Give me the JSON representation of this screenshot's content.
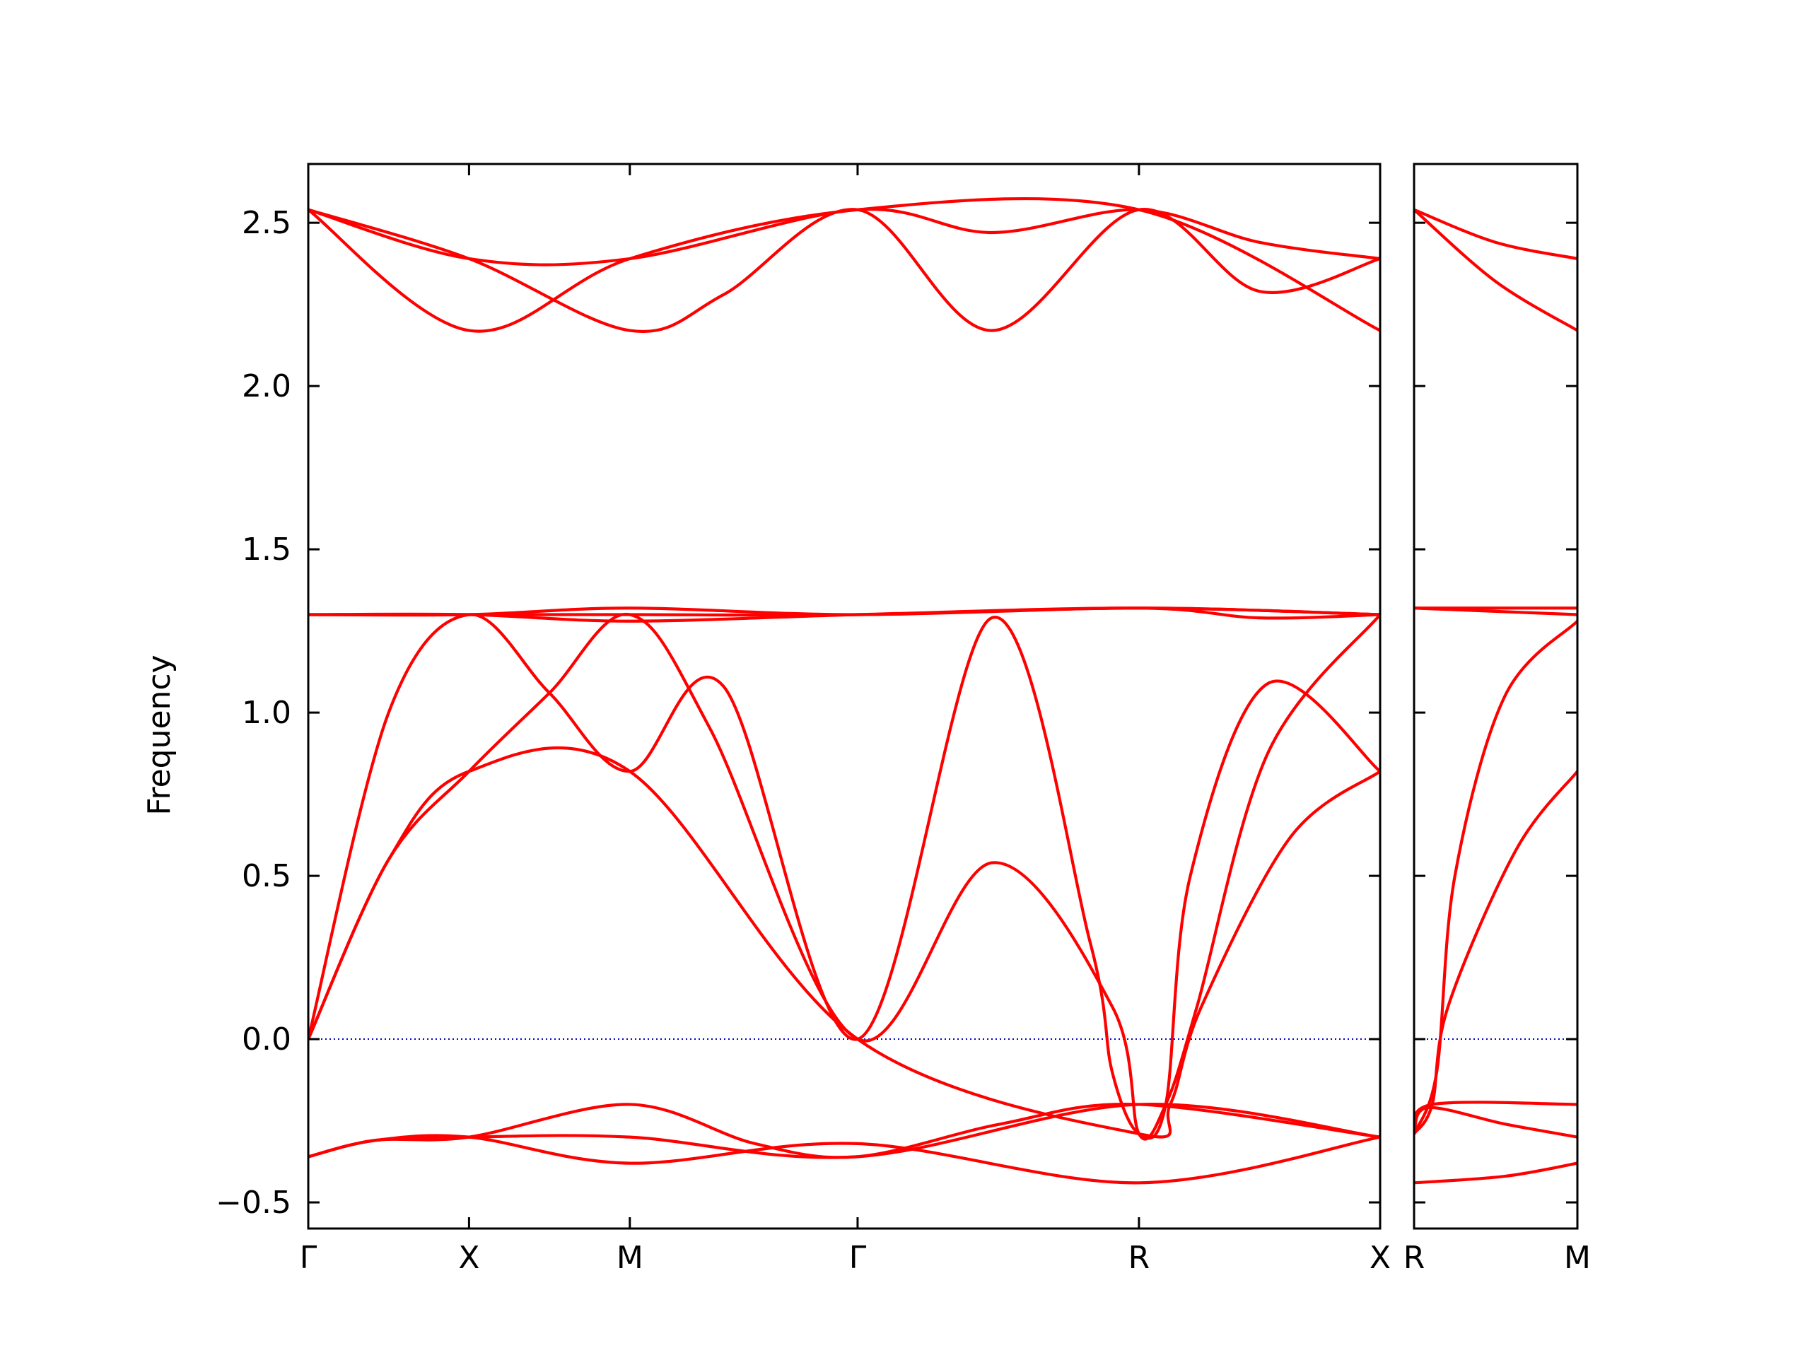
{
  "chart_data": {
    "type": "line",
    "title": "",
    "xlabel": "",
    "ylabel": "Frequency",
    "ylim": [
      -0.58,
      2.68
    ],
    "yticks": [
      "−0.5",
      "0.0",
      "0.5",
      "1.0",
      "1.5",
      "2.0",
      "2.5"
    ],
    "ytick_values": [
      -0.5,
      0.0,
      0.5,
      1.0,
      1.5,
      2.0,
      2.5
    ],
    "grid": false,
    "legend": "none",
    "line_color": "#ff0000",
    "zero_line_color": "#0000cc",
    "panels": [
      {
        "xlim": [
          0,
          4.8
        ],
        "xticks": [
          "Γ",
          "X",
          "M",
          "Γ",
          "R",
          "X"
        ],
        "xtick_positions": [
          0,
          0.72,
          1.44,
          2.46,
          3.72,
          4.8
        ],
        "series": [
          {
            "x": [
              0,
              0.72,
              1.44,
              2.46,
              3.06,
              3.72,
              4.26,
              4.8
            ],
            "y": [
              2.54,
              2.39,
              2.39,
              2.54,
              2.47,
              2.54,
              2.44,
              2.39
            ]
          },
          {
            "x": [
              0,
              0.72,
              1.44,
              1.86,
              2.46,
              3.06,
              3.72,
              4.26,
              4.8
            ],
            "y": [
              2.54,
              2.39,
              2.17,
              2.28,
              2.54,
              2.17,
              2.54,
              2.29,
              2.39
            ]
          },
          {
            "x": [
              0,
              0.72,
              1.44,
              2.46,
              3.72,
              4.8
            ],
            "y": [
              2.54,
              2.17,
              2.39,
              2.54,
              2.54,
              2.17
            ]
          },
          {
            "x": [
              0,
              0.72,
              1.44,
              2.46,
              3.72,
              4.8
            ],
            "y": [
              1.3,
              1.3,
              1.32,
              1.3,
              1.32,
              1.3
            ]
          },
          {
            "x": [
              0,
              0.72,
              1.44,
              2.46,
              3.72,
              4.26,
              4.8
            ],
            "y": [
              1.3,
              1.3,
              1.28,
              1.3,
              1.32,
              1.29,
              1.3
            ]
          },
          {
            "x": [
              0,
              0.72,
              1.44,
              2.46,
              3.72,
              4.8
            ],
            "y": [
              1.3,
              1.3,
              1.3,
              1.3,
              1.32,
              1.3
            ]
          },
          {
            "x": [
              0,
              0.36,
              0.72,
              1.08,
              1.44,
              1.86,
              2.46,
              3.06,
              3.5,
              3.6,
              3.72,
              3.84,
              3.95,
              4.3,
              4.8
            ],
            "y": [
              0.0,
              1.0,
              1.3,
              1.06,
              0.82,
              1.08,
              0.0,
              1.29,
              0.3,
              -0.1,
              -0.29,
              -0.2,
              0.5,
              1.09,
              0.82
            ]
          },
          {
            "x": [
              0,
              0.36,
              0.72,
              1.08,
              1.44,
              1.8,
              2.46,
              3.06,
              3.6,
              3.72,
              3.84,
              3.98,
              4.3,
              4.8
            ],
            "y": [
              0.0,
              0.55,
              0.82,
              1.06,
              1.3,
              0.95,
              0.0,
              0.54,
              0.1,
              -0.29,
              -0.2,
              0.1,
              0.88,
              1.3
            ]
          },
          {
            "x": [
              0,
              0.36,
              0.72,
              1.44,
              2.46,
              3.72,
              3.86,
              4.0,
              4.4,
              4.8
            ],
            "y": [
              0.0,
              0.55,
              0.82,
              0.82,
              0.0,
              -0.29,
              -0.2,
              0.1,
              0.62,
              0.82
            ]
          },
          {
            "x": [
              0,
              0.3,
              0.72,
              1.44,
              2.0,
              2.46,
              3.1,
              3.72,
              4.8
            ],
            "y": [
              -0.36,
              -0.31,
              -0.3,
              -0.2,
              -0.32,
              -0.36,
              -0.26,
              -0.2,
              -0.3
            ]
          },
          {
            "x": [
              0,
              0.3,
              0.72,
              1.44,
              2.46,
              3.72,
              4.8
            ],
            "y": [
              -0.36,
              -0.31,
              -0.3,
              -0.3,
              -0.36,
              -0.2,
              -0.3
            ]
          },
          {
            "x": [
              0,
              0.3,
              0.72,
              1.44,
              2.46,
              3.72,
              4.8
            ],
            "y": [
              -0.36,
              -0.31,
              -0.3,
              -0.38,
              -0.32,
              -0.44,
              -0.3
            ]
          }
        ]
      },
      {
        "xlim": [
          0,
          0.72
        ],
        "xticks": [
          "R",
          "M"
        ],
        "xtick_positions": [
          0,
          0.72
        ],
        "series": [
          {
            "x": [
              0,
              0.36,
              0.72
            ],
            "y": [
              2.54,
              2.44,
              2.39
            ]
          },
          {
            "x": [
              0,
              0.36,
              0.72
            ],
            "y": [
              2.54,
              2.32,
              2.17
            ]
          },
          {
            "x": [
              0,
              0.72
            ],
            "y": [
              1.32,
              1.32
            ]
          },
          {
            "x": [
              0,
              0.72
            ],
            "y": [
              1.32,
              1.3
            ]
          },
          {
            "x": [
              0,
              0.1,
              0.18,
              0.4,
              0.72
            ],
            "y": [
              -0.29,
              -0.1,
              0.5,
              1.05,
              1.28
            ]
          },
          {
            "x": [
              0,
              0.08,
              0.15,
              0.45,
              0.72
            ],
            "y": [
              -0.29,
              -0.2,
              0.1,
              0.58,
              0.82
            ]
          },
          {
            "x": [
              0,
              0.08,
              0.72
            ],
            "y": [
              -0.29,
              -0.2,
              -0.2
            ]
          },
          {
            "x": [
              0,
              0.06,
              0.4,
              0.72
            ],
            "y": [
              -0.29,
              -0.21,
              -0.26,
              -0.3
            ]
          },
          {
            "x": [
              0,
              0.4,
              0.72
            ],
            "y": [
              -0.44,
              -0.42,
              -0.38
            ]
          }
        ]
      }
    ]
  }
}
